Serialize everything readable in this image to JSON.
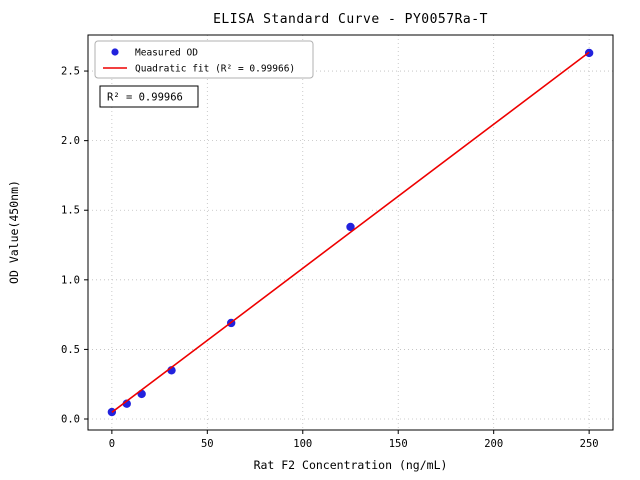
{
  "chart_data": {
    "type": "scatter",
    "title": "ELISA Standard Curve - PY0057Ra-T",
    "xlabel": "Rat F2 Concentration (ng/mL)",
    "ylabel": "OD Value(450nm)",
    "xlim": [
      -12.5,
      262.5
    ],
    "ylim": [
      -0.079,
      2.759
    ],
    "xticks": [
      0,
      50,
      100,
      150,
      200,
      250
    ],
    "yticks": [
      0.0,
      0.5,
      1.0,
      1.5,
      2.0,
      2.5
    ],
    "grid": true,
    "legend_position": "upper-left",
    "annotation": "R² = 0.99966",
    "series": [
      {
        "name": "Measured OD",
        "kind": "scatter",
        "color": "#2222dd",
        "x": [
          0,
          7.8,
          15.6,
          31.25,
          62.5,
          125,
          250
        ],
        "y": [
          0.05,
          0.11,
          0.18,
          0.35,
          0.69,
          1.38,
          2.63
        ]
      },
      {
        "name": "Quadratic fit (R² = 0.99966)",
        "kind": "line",
        "color": "#ee0000",
        "x": [
          0,
          62.5,
          125,
          250
        ],
        "y": [
          0.048,
          0.694,
          1.342,
          2.635
        ]
      }
    ]
  }
}
